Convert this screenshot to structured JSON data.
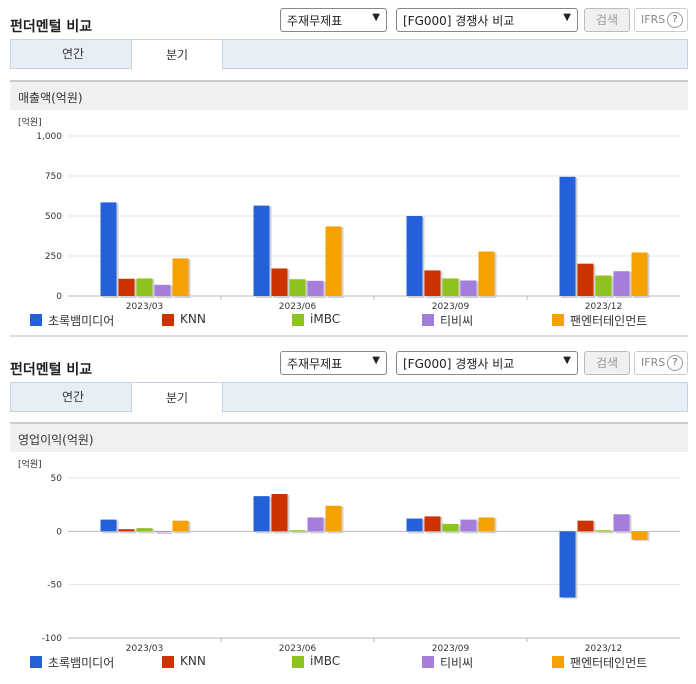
{
  "header": {
    "title": "펀더멘털 비교",
    "select1": "주재무제표",
    "select2": "[FG000] 경쟁사 비교",
    "search_label": "검색",
    "ifrs_label": "IFRS",
    "help_glyph": "?"
  },
  "tabs": [
    "연간",
    "분기"
  ],
  "legend": [
    "초록뱀미디어",
    "KNN",
    "iMBC",
    "티비씨",
    "팬엔터테인먼트"
  ],
  "colors": [
    "#2461d8",
    "#cc3300",
    "#8ec21f",
    "#a57edb",
    "#f5a100"
  ],
  "chart_data": [
    {
      "type": "bar",
      "title": "매출액(억원)",
      "unit_label": "[억원]",
      "categories": [
        "2023/03",
        "2023/06",
        "2023/09",
        "2023/12"
      ],
      "ylim": [
        0,
        1000
      ],
      "yticks": [
        0,
        250,
        500,
        750,
        1000
      ],
      "ytick_labels": [
        "0",
        "250",
        "500",
        "750",
        "1,000"
      ],
      "series": [
        {
          "name": "초록뱀미디어",
          "values": [
            585,
            565,
            500,
            745
          ]
        },
        {
          "name": "KNN",
          "values": [
            108,
            172,
            160,
            202
          ]
        },
        {
          "name": "iMBC",
          "values": [
            110,
            105,
            110,
            128
          ]
        },
        {
          "name": "티비씨",
          "values": [
            70,
            95,
            97,
            155
          ]
        },
        {
          "name": "팬엔터테인먼트",
          "values": [
            235,
            435,
            278,
            272
          ]
        }
      ]
    },
    {
      "type": "bar",
      "title": "영업이익(억원)",
      "unit_label": "[억원]",
      "categories": [
        "2023/03",
        "2023/06",
        "2023/09",
        "2023/12"
      ],
      "ylim": [
        -100,
        50
      ],
      "yticks": [
        -100,
        -50,
        0,
        50
      ],
      "ytick_labels": [
        "-100",
        "-50",
        "0",
        "50"
      ],
      "series": [
        {
          "name": "초록뱀미디어",
          "values": [
            11,
            33,
            12,
            -62
          ]
        },
        {
          "name": "KNN",
          "values": [
            2,
            35,
            14,
            10
          ]
        },
        {
          "name": "iMBC",
          "values": [
            3,
            1,
            7,
            1
          ]
        },
        {
          "name": "티비씨",
          "values": [
            0,
            13,
            11,
            16
          ]
        },
        {
          "name": "팬엔터테인먼트",
          "values": [
            10,
            24,
            13,
            -8
          ]
        }
      ]
    }
  ]
}
